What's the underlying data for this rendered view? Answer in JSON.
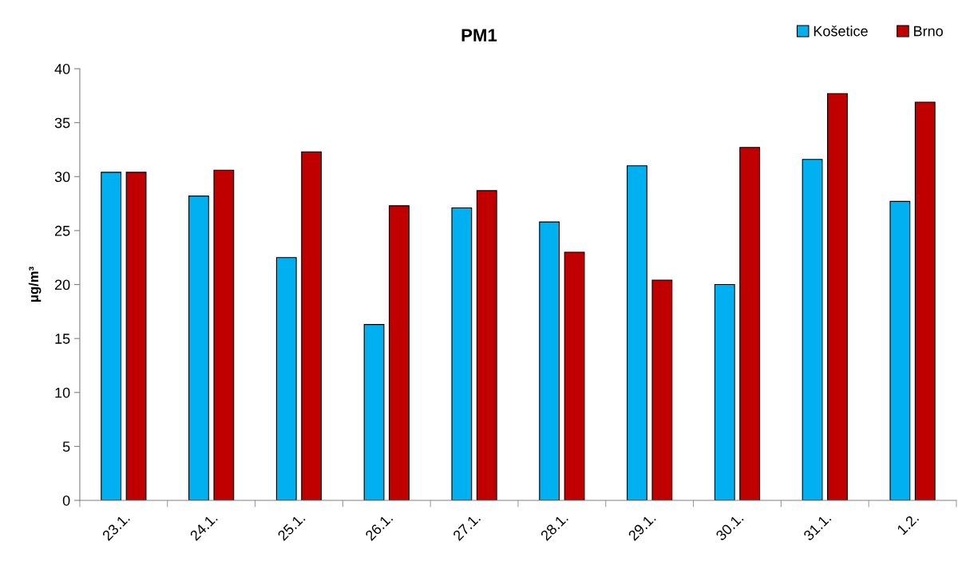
{
  "chart_data": {
    "type": "bar",
    "title": "PM1",
    "ylabel": "μg/m³",
    "categories": [
      "23.1.",
      "24.1.",
      "25.1.",
      "26.1.",
      "27.1.",
      "28.1.",
      "29.1.",
      "30.1.",
      "31.1.",
      "1.2."
    ],
    "series": [
      {
        "name": "Košetice",
        "color": "#00b0f0",
        "values": [
          30.4,
          28.2,
          22.5,
          16.3,
          27.1,
          25.8,
          31.0,
          20.0,
          31.6,
          27.7
        ]
      },
      {
        "name": "Brno",
        "color": "#c00000",
        "values": [
          30.4,
          30.6,
          32.3,
          27.3,
          28.7,
          23.0,
          20.4,
          32.7,
          37.7,
          36.9
        ]
      }
    ],
    "ylim": [
      0,
      40
    ],
    "yticks": [
      0,
      5,
      10,
      15,
      20,
      25,
      30,
      35,
      40
    ],
    "legend": "top right",
    "grid": false
  }
}
